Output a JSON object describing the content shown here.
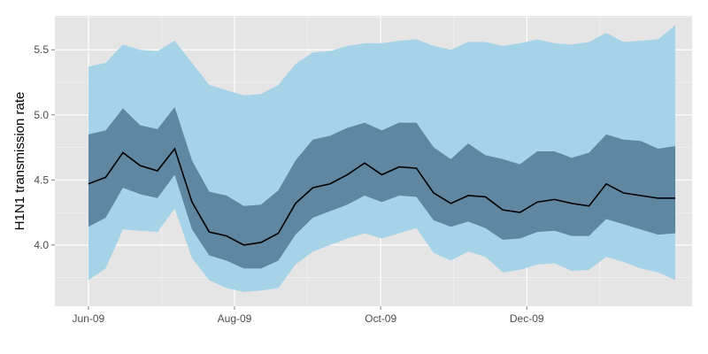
{
  "chart_data": {
    "type": "area",
    "title": "",
    "xlabel": "",
    "ylabel": "H1N1 transmission rate",
    "x_start": "2009-06-01",
    "x_end": "2010-02-01",
    "xlim": [
      "2009-05-18",
      "2010-02-08"
    ],
    "ylim": [
      3.53,
      5.76
    ],
    "grid": true,
    "x_ticks": [
      {
        "date": "2009-06-01",
        "label": "Jun-09"
      },
      {
        "date": "2009-08-01",
        "label": "Aug-09"
      },
      {
        "date": "2009-10-01",
        "label": "Oct-09"
      },
      {
        "date": "2009-12-01",
        "label": "Dec-09"
      }
    ],
    "y_ticks": [
      {
        "value": 4.0,
        "label": "4.0"
      },
      {
        "value": 4.5,
        "label": "4.5"
      },
      {
        "value": 5.0,
        "label": "5.0"
      },
      {
        "value": 5.5,
        "label": "5.5"
      }
    ],
    "series": {
      "median": [
        4.47,
        4.52,
        4.71,
        4.61,
        4.57,
        4.74,
        4.33,
        4.1,
        4.07,
        4.0,
        4.02,
        4.09,
        4.32,
        4.44,
        4.47,
        4.54,
        4.63,
        4.54,
        4.6,
        4.59,
        4.4,
        4.32,
        4.38,
        4.37,
        4.27,
        4.25,
        4.33,
        4.35,
        4.32,
        4.3,
        4.47,
        4.4,
        4.38,
        4.36,
        4.36
      ],
      "inner_upper": [
        4.85,
        4.88,
        5.05,
        4.92,
        4.89,
        5.06,
        4.65,
        4.41,
        4.38,
        4.3,
        4.31,
        4.42,
        4.65,
        4.81,
        4.84,
        4.9,
        4.94,
        4.88,
        4.94,
        4.94,
        4.75,
        4.66,
        4.78,
        4.69,
        4.66,
        4.62,
        4.72,
        4.72,
        4.67,
        4.71,
        4.85,
        4.81,
        4.8,
        4.74,
        4.76
      ],
      "inner_lower": [
        4.14,
        4.21,
        4.44,
        4.39,
        4.36,
        4.54,
        4.12,
        3.92,
        3.88,
        3.82,
        3.82,
        3.88,
        4.08,
        4.21,
        4.26,
        4.31,
        4.38,
        4.33,
        4.38,
        4.37,
        4.19,
        4.14,
        4.18,
        4.13,
        4.04,
        4.05,
        4.1,
        4.11,
        4.07,
        4.07,
        4.2,
        4.16,
        4.12,
        4.08,
        4.09
      ],
      "outer_upper": [
        5.37,
        5.4,
        5.54,
        5.5,
        5.49,
        5.57,
        5.4,
        5.23,
        5.19,
        5.15,
        5.16,
        5.23,
        5.39,
        5.48,
        5.49,
        5.53,
        5.55,
        5.55,
        5.57,
        5.58,
        5.53,
        5.5,
        5.56,
        5.56,
        5.53,
        5.55,
        5.58,
        5.55,
        5.54,
        5.56,
        5.63,
        5.56,
        5.57,
        5.58,
        5.69
      ],
      "outer_lower": [
        3.73,
        3.82,
        4.12,
        4.11,
        4.1,
        4.28,
        3.9,
        3.73,
        3.67,
        3.64,
        3.65,
        3.67,
        3.85,
        3.95,
        4.0,
        4.05,
        4.09,
        4.05,
        4.09,
        4.13,
        3.94,
        3.88,
        3.95,
        3.91,
        3.79,
        3.81,
        3.85,
        3.86,
        3.8,
        3.81,
        3.91,
        3.87,
        3.82,
        3.79,
        3.73
      ]
    },
    "colors": {
      "panel": "#e5e5e5",
      "grid": "#ffffff",
      "outer_band": "#a6d3e8",
      "inner_band": "#5f87a1",
      "median_line": "#000000"
    }
  }
}
